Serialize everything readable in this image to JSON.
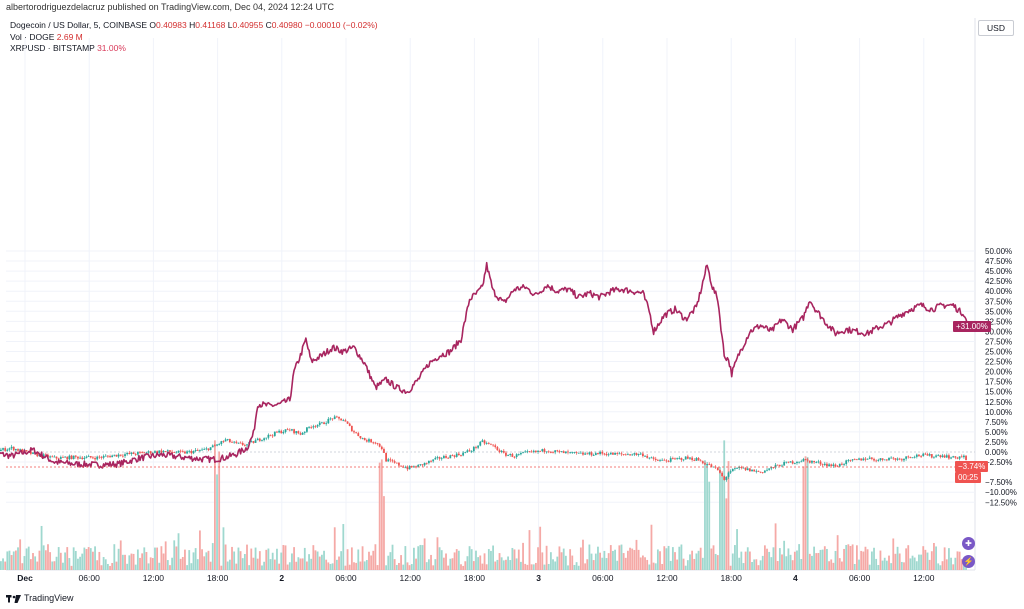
{
  "header": {
    "published_by": "albertorodriguezdelacruz published on TradingView.com, Dec 04, 2024 12:24 UTC"
  },
  "legend": {
    "symbol_line": "Dogecoin / US Dollar, 5, COINBASE",
    "ohlc": {
      "o_label": "O",
      "o_value": "0.40983",
      "h_label": "H",
      "h_value": "0.41168",
      "l_label": "L",
      "l_value": "0.40955",
      "c_label": "C",
      "c_value": "0.40980",
      "change": "−0.00010 (−0.02%)"
    },
    "volume_label": "Vol · DOGE",
    "volume_value": "2.69 M",
    "compare_label": "XRPUSD · BITSTAMP",
    "compare_value": "31.00%"
  },
  "axis": {
    "currency": "USD",
    "y_ticks": [
      "50.00%",
      "47.50%",
      "45.00%",
      "42.50%",
      "40.00%",
      "37.50%",
      "35.00%",
      "32.50%",
      "30.00%",
      "27.50%",
      "25.00%",
      "22.50%",
      "20.00%",
      "17.50%",
      "15.00%",
      "12.50%",
      "10.00%",
      "7.50%",
      "5.00%",
      "2.50%",
      "0.00%",
      "−2.50%",
      "−7.50%",
      "−10.00%",
      "−12.50%"
    ],
    "x_ticks": [
      "Dec",
      "06:00",
      "12:00",
      "18:00",
      "2",
      "06:00",
      "12:00",
      "18:00",
      "3",
      "06:00",
      "12:00",
      "18:00",
      "4",
      "06:00",
      "12:00"
    ]
  },
  "tags": {
    "xrp_last": "+31.00%",
    "doge_last": "−3.74%",
    "countdown": "00:25"
  },
  "footer": {
    "brand": "TradingView"
  },
  "colors": {
    "xrp": "#a8255f",
    "up": "#26a69a",
    "down": "#ef5350",
    "grid": "#f0f3fa",
    "vol_up": "#9fd8cf",
    "vol_down": "#f5a9a6",
    "round_button": "#7a58c6"
  },
  "chart_data": {
    "type": "line",
    "title": "Dogecoin / US Dollar, 5, COINBASE",
    "y_unit": "% change",
    "ylim": [
      -14,
      51
    ],
    "x_range": [
      "Dec 1 00:00",
      "Dec 4 12:24"
    ],
    "series": [
      {
        "name": "XRPUSD · BITSTAMP",
        "style": "line",
        "points": [
          [
            -4,
            0.0
          ],
          [
            -2,
            -1.0
          ],
          [
            0,
            0.5
          ],
          [
            2,
            -2.5
          ],
          [
            4,
            -3.0
          ],
          [
            6,
            -3.2
          ],
          [
            8,
            -3.0
          ],
          [
            10,
            -1.5
          ],
          [
            12,
            -0.7
          ],
          [
            14,
            -1.3
          ],
          [
            16,
            -1.8
          ],
          [
            17,
            -1.8
          ],
          [
            18,
            -1.4
          ],
          [
            19,
            -0.5
          ],
          [
            20,
            1.0
          ],
          [
            20.6,
            4.5
          ],
          [
            21,
            12.0
          ],
          [
            22,
            11.5
          ],
          [
            23,
            11.8
          ],
          [
            24,
            13.0
          ],
          [
            24.4,
            20.0
          ],
          [
            25,
            24.0
          ],
          [
            25.5,
            28.0
          ],
          [
            26,
            22.5
          ],
          [
            27,
            24.0
          ],
          [
            28,
            26.0
          ],
          [
            29,
            25.0
          ],
          [
            30,
            26.0
          ],
          [
            31,
            22.0
          ],
          [
            32,
            16.0
          ],
          [
            33,
            18.0
          ],
          [
            34,
            16.0
          ],
          [
            35,
            15.0
          ],
          [
            36,
            18.0
          ],
          [
            37,
            22.0
          ],
          [
            38,
            24.0
          ],
          [
            39,
            25.0
          ],
          [
            40,
            28.0
          ],
          [
            40.8,
            38.0
          ],
          [
            41.5,
            39.5
          ],
          [
            42,
            41.0
          ],
          [
            42.4,
            46.5
          ],
          [
            43,
            40.0
          ],
          [
            44,
            37.0
          ],
          [
            45,
            40.5
          ],
          [
            46,
            41.0
          ],
          [
            47,
            39.0
          ],
          [
            48,
            41.5
          ],
          [
            49,
            40.0
          ],
          [
            50,
            40.5
          ],
          [
            51,
            38.5
          ],
          [
            52,
            39.5
          ],
          [
            53,
            38.5
          ],
          [
            54,
            40.0
          ],
          [
            55,
            40.5
          ],
          [
            56,
            40.0
          ],
          [
            57,
            39.5
          ],
          [
            57.6,
            35.0
          ],
          [
            58,
            30.0
          ],
          [
            59,
            34.0
          ],
          [
            60,
            35.5
          ],
          [
            61,
            33.0
          ],
          [
            62,
            36.0
          ],
          [
            62.4,
            40.0
          ],
          [
            63,
            46.5
          ],
          [
            63.5,
            41.0
          ],
          [
            64,
            38.0
          ],
          [
            64.6,
            24.0
          ],
          [
            65,
            23.0
          ],
          [
            65.3,
            19.5
          ],
          [
            66,
            24.5
          ],
          [
            67,
            30.0
          ],
          [
            68,
            31.5
          ],
          [
            69,
            30.0
          ],
          [
            70,
            33.0
          ],
          [
            71,
            30.5
          ],
          [
            72,
            33.5
          ],
          [
            72.6,
            38.0
          ],
          [
            73,
            36.0
          ],
          [
            74,
            32.5
          ],
          [
            75,
            29.5
          ],
          [
            76,
            30.5
          ],
          [
            77,
            30.0
          ],
          [
            78,
            29.5
          ],
          [
            79,
            31.0
          ],
          [
            80,
            32.0
          ],
          [
            81,
            34.0
          ],
          [
            82,
            35.5
          ],
          [
            83,
            36.5
          ],
          [
            84,
            35.5
          ],
          [
            85,
            36.5
          ],
          [
            86,
            36.5
          ],
          [
            86.6,
            35.0
          ],
          [
            87,
            34.5
          ],
          [
            87.4,
            31.0
          ]
        ]
      },
      {
        "name": "Dogecoin / US Dollar",
        "style": "candles",
        "points": [
          [
            -4,
            0.0
          ],
          [
            -2,
            1.0
          ],
          [
            0,
            -0.5
          ],
          [
            2,
            -1.5
          ],
          [
            4,
            -1.3
          ],
          [
            6,
            -1.4
          ],
          [
            8,
            -0.7
          ],
          [
            10,
            -0.3
          ],
          [
            12,
            0.2
          ],
          [
            14,
            -0.2
          ],
          [
            16,
            0.5
          ],
          [
            17,
            1.5
          ],
          [
            18,
            3.0
          ],
          [
            19,
            2.0
          ],
          [
            20,
            1.8
          ],
          [
            21,
            3.0
          ],
          [
            22,
            4.0
          ],
          [
            23,
            5.0
          ],
          [
            24,
            5.5
          ],
          [
            25,
            4.5
          ],
          [
            26,
            6.5
          ],
          [
            27,
            7.0
          ],
          [
            28,
            8.5
          ],
          [
            29,
            8.0
          ],
          [
            30,
            5.0
          ],
          [
            31,
            3.0
          ],
          [
            32,
            2.5
          ],
          [
            32.6,
            1.0
          ],
          [
            33,
            -2.0
          ],
          [
            34,
            -3.0
          ],
          [
            35,
            -4.0
          ],
          [
            36,
            -3.5
          ],
          [
            37,
            -2.5
          ],
          [
            38,
            -1.5
          ],
          [
            39,
            -1.0
          ],
          [
            40,
            -0.5
          ],
          [
            41,
            0.5
          ],
          [
            42,
            2.5
          ],
          [
            43,
            1.5
          ],
          [
            44,
            -0.5
          ],
          [
            45,
            -1.0
          ],
          [
            46,
            -0.3
          ],
          [
            47,
            0.0
          ],
          [
            48,
            0.5
          ],
          [
            49,
            0.0
          ],
          [
            50,
            -0.3
          ],
          [
            51,
            -0.5
          ],
          [
            52,
            -0.5
          ],
          [
            53,
            -0.3
          ],
          [
            54,
            -0.5
          ],
          [
            55,
            -0.6
          ],
          [
            56,
            -0.5
          ],
          [
            57,
            -0.6
          ],
          [
            58,
            -2.0
          ],
          [
            59,
            -2.2
          ],
          [
            60,
            -1.8
          ],
          [
            61,
            -1.5
          ],
          [
            62,
            -1.8
          ],
          [
            63,
            -3.0
          ],
          [
            64,
            -4.5
          ],
          [
            64.6,
            -7.0
          ],
          [
            65,
            -5.0
          ],
          [
            66,
            -4.0
          ],
          [
            67,
            -4.5
          ],
          [
            68,
            -5.0
          ],
          [
            69,
            -4.0
          ],
          [
            70,
            -3.0
          ],
          [
            71,
            -2.5
          ],
          [
            72,
            -2.0
          ],
          [
            73,
            -2.5
          ],
          [
            74,
            -3.0
          ],
          [
            75,
            -3.5
          ],
          [
            76,
            -2.5
          ],
          [
            77,
            -2.0
          ],
          [
            78,
            -1.5
          ],
          [
            79,
            -2.0
          ],
          [
            80,
            -1.5
          ],
          [
            81,
            -1.8
          ],
          [
            82,
            -1.0
          ],
          [
            83,
            -0.8
          ],
          [
            84,
            -1.0
          ],
          [
            85,
            -0.8
          ],
          [
            86,
            -1.5
          ],
          [
            87,
            -1.0
          ],
          [
            87.4,
            -3.74
          ]
        ]
      }
    ],
    "last_values": {
      "XRPUSD": 31.0,
      "DOGE": -3.74
    }
  }
}
